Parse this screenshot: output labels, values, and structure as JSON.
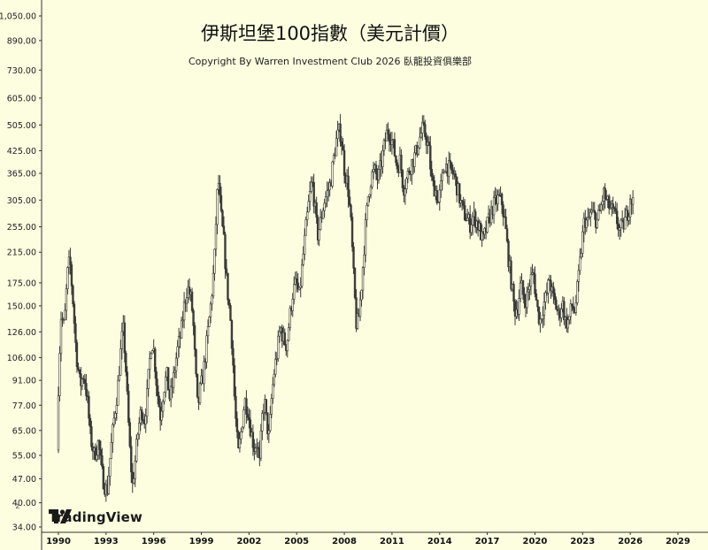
{
  "chart_data": {
    "type": "candlestick-bar",
    "title": "伊斯坦堡100指數（美元計價）",
    "subtitle": "Copyright By Warren Investment Club 2026 臥龍投資俱樂部",
    "brand": "TradingView",
    "y_scale": "log",
    "ylim": [
      34,
      1050
    ],
    "y_ticks": [
      34,
      40,
      47,
      55,
      65,
      77,
      91,
      106,
      126,
      150,
      175,
      215,
      255,
      305,
      365,
      425,
      505,
      605,
      730,
      890,
      1050
    ],
    "y_tick_labels": [
      "34.00",
      "40.00",
      "47.00",
      "55.00",
      "65.00",
      "77.00",
      "91.00",
      "106.00",
      "126.00",
      "150.00",
      "175.00",
      "215.00",
      "255.00",
      "305.00",
      "365.00",
      "425.00",
      "505.00",
      "605.00",
      "730.00",
      "890.00",
      "1,050.00"
    ],
    "x_ticks": [
      1990,
      1993,
      1996,
      1999,
      2002,
      2005,
      2008,
      2011,
      2014,
      2017,
      2020,
      2023,
      2026,
      2029
    ],
    "x_tick_labels": [
      "1990",
      "1993",
      "1996",
      "1999",
      "2002",
      "2005",
      "2008",
      "2011",
      "2014",
      "2017",
      "2020",
      "2023",
      "2026",
      "2029"
    ],
    "xlim": [
      1989.6,
      2030.5
    ],
    "corner_label": "z",
    "bar_color": "#3a3a3a",
    "path_points": [
      [
        1990.0,
        57
      ],
      [
        1990.1,
        95
      ],
      [
        1990.25,
        140
      ],
      [
        1990.45,
        130
      ],
      [
        1990.65,
        185
      ],
      [
        1990.8,
        205
      ],
      [
        1991.0,
        155
      ],
      [
        1991.2,
        110
      ],
      [
        1991.45,
        88
      ],
      [
        1991.7,
        95
      ],
      [
        1991.9,
        80
      ],
      [
        1992.1,
        62
      ],
      [
        1992.35,
        55
      ],
      [
        1992.6,
        60
      ],
      [
        1992.85,
        48
      ],
      [
        1993.0,
        45
      ],
      [
        1993.15,
        43
      ],
      [
        1993.35,
        55
      ],
      [
        1993.55,
        68
      ],
      [
        1993.8,
        85
      ],
      [
        1994.0,
        110
      ],
      [
        1994.15,
        130
      ],
      [
        1994.3,
        105
      ],
      [
        1994.45,
        75
      ],
      [
        1994.6,
        55
      ],
      [
        1994.75,
        45
      ],
      [
        1994.9,
        52
      ],
      [
        1995.1,
        65
      ],
      [
        1995.3,
        75
      ],
      [
        1995.5,
        70
      ],
      [
        1995.65,
        80
      ],
      [
        1995.8,
        100
      ],
      [
        1995.95,
        120
      ],
      [
        1996.1,
        110
      ],
      [
        1996.3,
        85
      ],
      [
        1996.5,
        72
      ],
      [
        1996.7,
        85
      ],
      [
        1996.9,
        95
      ],
      [
        1997.1,
        80
      ],
      [
        1997.3,
        90
      ],
      [
        1997.55,
        110
      ],
      [
        1997.8,
        125
      ],
      [
        1998.0,
        150
      ],
      [
        1998.2,
        170
      ],
      [
        1998.4,
        160
      ],
      [
        1998.55,
        140
      ],
      [
        1998.7,
        100
      ],
      [
        1998.85,
        75
      ],
      [
        1999.0,
        85
      ],
      [
        1999.2,
        95
      ],
      [
        1999.45,
        120
      ],
      [
        1999.7,
        155
      ],
      [
        1999.9,
        200
      ],
      [
        2000.05,
        300
      ],
      [
        2000.15,
        350
      ],
      [
        2000.3,
        280
      ],
      [
        2000.5,
        230
      ],
      [
        2000.7,
        170
      ],
      [
        2000.9,
        140
      ],
      [
        2001.05,
        110
      ],
      [
        2001.2,
        75
      ],
      [
        2001.4,
        55
      ],
      [
        2001.6,
        65
      ],
      [
        2001.8,
        80
      ],
      [
        2002.0,
        75
      ],
      [
        2002.2,
        65
      ],
      [
        2002.4,
        58
      ],
      [
        2002.6,
        60
      ],
      [
        2002.75,
        52
      ],
      [
        2002.9,
        70
      ],
      [
        2003.05,
        80
      ],
      [
        2003.2,
        68
      ],
      [
        2003.35,
        62
      ],
      [
        2003.5,
        80
      ],
      [
        2003.65,
        95
      ],
      [
        2003.85,
        110
      ],
      [
        2004.05,
        130
      ],
      [
        2004.25,
        120
      ],
      [
        2004.45,
        115
      ],
      [
        2004.65,
        140
      ],
      [
        2004.85,
        165
      ],
      [
        2005.05,
        175
      ],
      [
        2005.25,
        160
      ],
      [
        2005.45,
        200
      ],
      [
        2005.65,
        250
      ],
      [
        2005.85,
        300
      ],
      [
        2006.05,
        350
      ],
      [
        2006.2,
        300
      ],
      [
        2006.4,
        240
      ],
      [
        2006.6,
        265
      ],
      [
        2006.8,
        300
      ],
      [
        2007.0,
        320
      ],
      [
        2007.2,
        340
      ],
      [
        2007.4,
        400
      ],
      [
        2007.6,
        460
      ],
      [
        2007.8,
        490
      ],
      [
        2007.95,
        440
      ],
      [
        2008.1,
        370
      ],
      [
        2008.3,
        340
      ],
      [
        2008.5,
        260
      ],
      [
        2008.7,
        170
      ],
      [
        2008.85,
        130
      ],
      [
        2009.0,
        140
      ],
      [
        2009.2,
        180
      ],
      [
        2009.4,
        250
      ],
      [
        2009.6,
        320
      ],
      [
        2009.8,
        360
      ],
      [
        2010.0,
        370
      ],
      [
        2010.2,
        350
      ],
      [
        2010.4,
        390
      ],
      [
        2010.6,
        440
      ],
      [
        2010.8,
        490
      ],
      [
        2011.0,
        470
      ],
      [
        2011.2,
        430
      ],
      [
        2011.4,
        380
      ],
      [
        2011.6,
        400
      ],
      [
        2011.8,
        330
      ],
      [
        2012.0,
        350
      ],
      [
        2012.2,
        380
      ],
      [
        2012.4,
        400
      ],
      [
        2012.6,
        420
      ],
      [
        2012.8,
        460
      ],
      [
        2013.0,
        490
      ],
      [
        2013.2,
        470
      ],
      [
        2013.4,
        430
      ],
      [
        2013.6,
        340
      ],
      [
        2013.8,
        330
      ],
      [
        2014.0,
        300
      ],
      [
        2014.2,
        340
      ],
      [
        2014.4,
        390
      ],
      [
        2014.6,
        380
      ],
      [
        2014.8,
        370
      ],
      [
        2015.0,
        360
      ],
      [
        2015.2,
        330
      ],
      [
        2015.4,
        300
      ],
      [
        2015.6,
        280
      ],
      [
        2015.8,
        270
      ],
      [
        2016.0,
        260
      ],
      [
        2016.2,
        275
      ],
      [
        2016.4,
        265
      ],
      [
        2016.6,
        250
      ],
      [
        2016.8,
        230
      ],
      [
        2017.0,
        250
      ],
      [
        2017.2,
        270
      ],
      [
        2017.4,
        290
      ],
      [
        2017.6,
        300
      ],
      [
        2017.8,
        310
      ],
      [
        2018.0,
        300
      ],
      [
        2018.2,
        260
      ],
      [
        2018.4,
        210
      ],
      [
        2018.6,
        175
      ],
      [
        2018.8,
        145
      ],
      [
        2019.0,
        150
      ],
      [
        2019.2,
        175
      ],
      [
        2019.4,
        155
      ],
      [
        2019.6,
        160
      ],
      [
        2019.8,
        180
      ],
      [
        2020.0,
        185
      ],
      [
        2020.2,
        150
      ],
      [
        2020.4,
        135
      ],
      [
        2020.6,
        150
      ],
      [
        2020.8,
        160
      ],
      [
        2021.0,
        180
      ],
      [
        2021.2,
        160
      ],
      [
        2021.4,
        150
      ],
      [
        2021.6,
        140
      ],
      [
        2021.8,
        155
      ],
      [
        2022.0,
        135
      ],
      [
        2022.2,
        135
      ],
      [
        2022.4,
        150
      ],
      [
        2022.6,
        145
      ],
      [
        2022.8,
        175
      ],
      [
        2023.0,
        220
      ],
      [
        2023.2,
        270
      ],
      [
        2023.4,
        260
      ],
      [
        2023.6,
        280
      ],
      [
        2023.8,
        275
      ],
      [
        2024.0,
        265
      ],
      [
        2024.2,
        285
      ],
      [
        2024.4,
        320
      ],
      [
        2024.6,
        300
      ],
      [
        2024.8,
        290
      ],
      [
        2025.0,
        280
      ],
      [
        2025.2,
        270
      ],
      [
        2025.4,
        250
      ],
      [
        2025.6,
        255
      ],
      [
        2025.8,
        270
      ],
      [
        2026.0,
        290
      ],
      [
        2026.1,
        320
      ],
      [
        2026.2,
        300
      ]
    ]
  }
}
